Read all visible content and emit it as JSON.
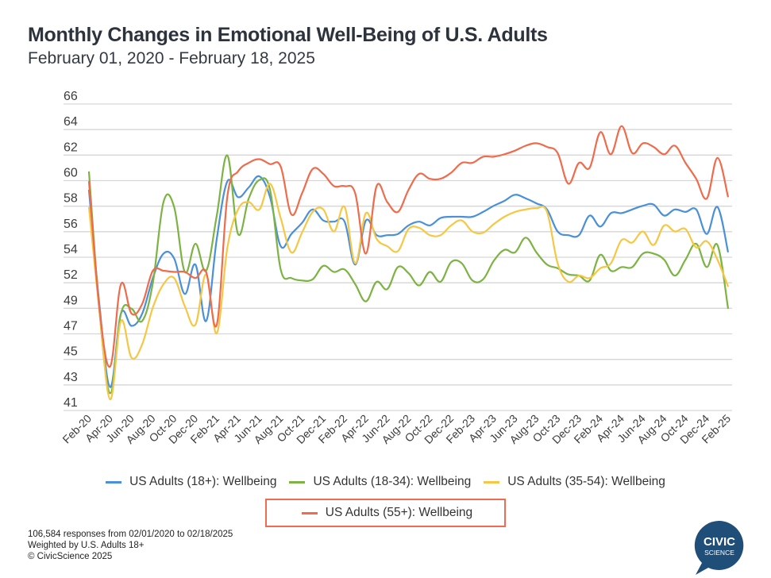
{
  "header": {
    "title": "Monthly Changes in Emotional Well-Being of U.S. Adults",
    "subtitle": "February 01, 2020 - February 18, 2025"
  },
  "footer": {
    "line1": "106,584 responses from 02/01/2020 to 02/18/2025",
    "line2": "Weighted by U.S. Adults 18+",
    "line3": "© CivicScience 2025"
  },
  "logo": {
    "line1": "CIVIC",
    "line2": "SCIENCE",
    "color": "#1f4e79"
  },
  "chart_data": {
    "type": "line",
    "title": "Monthly Changes in Emotional Well-Being of U.S. Adults",
    "subtitle": "February 01, 2020 - February 18, 2025",
    "xlabel": "",
    "ylabel": "",
    "ylim": [
      41,
      66
    ],
    "y_tick_labels": [
      "66",
      "64",
      "62",
      "60",
      "58",
      "56",
      "54",
      "52",
      "49",
      "47",
      "45",
      "43",
      "41"
    ],
    "grid": true,
    "legend_position": "bottom",
    "x_tick_labels": [
      "Feb-20",
      "Apr-20",
      "Jun-20",
      "Aug-20",
      "Oct-20",
      "Dec-20",
      "Feb-21",
      "Apr-21",
      "Jun-21",
      "Aug-21",
      "Oct-21",
      "Dec-21",
      "Feb-22",
      "Apr-22",
      "Jun-22",
      "Aug-22",
      "Oct-22",
      "Dec-22",
      "Feb-23",
      "Apr-23",
      "Jun-23",
      "Aug-23",
      "Oct-23",
      "Dec-23",
      "Feb-24",
      "Apr-24",
      "Jun-24",
      "Aug-24",
      "Oct-24",
      "Dec-24",
      "Feb-25"
    ],
    "x": [
      "Feb-20",
      "Mar-20",
      "Apr-20",
      "May-20",
      "Jun-20",
      "Jul-20",
      "Aug-20",
      "Sep-20",
      "Oct-20",
      "Nov-20",
      "Dec-20",
      "Jan-21",
      "Feb-21",
      "Mar-21",
      "Apr-21",
      "May-21",
      "Jun-21",
      "Jul-21",
      "Aug-21",
      "Sep-21",
      "Oct-21",
      "Nov-21",
      "Dec-21",
      "Jan-22",
      "Feb-22",
      "Mar-22",
      "Apr-22",
      "May-22",
      "Jun-22",
      "Jul-22",
      "Aug-22",
      "Sep-22",
      "Oct-22",
      "Nov-22",
      "Dec-22",
      "Jan-23",
      "Feb-23",
      "Mar-23",
      "Apr-23",
      "May-23",
      "Jun-23",
      "Jul-23",
      "Aug-23",
      "Sep-23",
      "Oct-23",
      "Nov-23",
      "Dec-23",
      "Jan-24",
      "Feb-24",
      "Mar-24",
      "Apr-24",
      "May-24",
      "Jun-24",
      "Jul-24",
      "Aug-24",
      "Sep-24",
      "Oct-24",
      "Nov-24",
      "Dec-24",
      "Jan-25",
      "Feb-25"
    ],
    "series": [
      {
        "name": "US Adults (18+): Wellbeing",
        "color": "#4a90d9",
        "values": [
          59.0,
          49.5,
          42.9,
          48.9,
          47.9,
          48.9,
          51.8,
          53.8,
          53.4,
          50.5,
          52.9,
          48.3,
          55.0,
          59.7,
          58.4,
          59.2,
          60.1,
          58.4,
          54.4,
          55.4,
          56.3,
          57.4,
          56.5,
          56.4,
          56.4,
          52.9,
          56.5,
          55.3,
          55.3,
          55.4,
          56.1,
          56.4,
          56.1,
          56.7,
          56.8,
          56.8,
          56.8,
          57.2,
          57.7,
          58.1,
          58.6,
          58.3,
          57.9,
          57.4,
          55.6,
          55.3,
          55.3,
          56.9,
          56.0,
          57.1,
          57.1,
          57.4,
          57.7,
          57.8,
          56.9,
          57.4,
          57.2,
          57.4,
          55.4,
          57.6,
          53.9
        ]
      },
      {
        "name": "US Adults (18-34): Wellbeing",
        "color": "#7cb342",
        "values": [
          60.5,
          49.0,
          42.4,
          48.9,
          49.3,
          48.3,
          51.4,
          58.0,
          57.6,
          52.3,
          54.6,
          52.4,
          56.9,
          61.8,
          55.4,
          58.3,
          59.8,
          59.0,
          52.5,
          51.8,
          51.6,
          51.7,
          52.8,
          52.3,
          52.5,
          51.3,
          49.9,
          51.5,
          50.9,
          52.7,
          52.2,
          51.2,
          52.3,
          51.5,
          53.1,
          53.0,
          51.6,
          51.7,
          53.2,
          54.1,
          53.9,
          55.1,
          53.9,
          52.9,
          52.6,
          52.1,
          52.0,
          51.6,
          53.7,
          52.4,
          52.7,
          52.7,
          53.8,
          53.8,
          53.3,
          52.0,
          53.3,
          54.6,
          52.7,
          54.5,
          49.3
        ]
      },
      {
        "name": "US Adults (35-54): Wellbeing",
        "color": "#f6c744",
        "values": [
          57.6,
          49.0,
          41.9,
          48.3,
          45.3,
          46.4,
          49.4,
          51.3,
          51.8,
          49.5,
          48.0,
          52.1,
          47.3,
          54.3,
          57.4,
          58.0,
          57.4,
          59.5,
          56.7,
          53.9,
          55.5,
          57.2,
          57.4,
          55.6,
          57.6,
          53.0,
          57.1,
          55.0,
          54.4,
          54.0,
          55.8,
          55.9,
          55.3,
          55.3,
          56.1,
          56.5,
          55.6,
          55.5,
          56.2,
          56.8,
          57.2,
          57.4,
          57.5,
          57.2,
          53.0,
          51.5,
          52.0,
          51.8,
          52.6,
          53.0,
          54.9,
          54.7,
          55.6,
          54.5,
          56.1,
          55.6,
          55.8,
          54.3,
          54.8,
          53.3,
          51.1
        ]
      },
      {
        "name": "US Adults (55+): Wellbeing",
        "color": "#ef6b4c",
        "values": [
          59.7,
          49.2,
          44.6,
          51.3,
          48.9,
          49.7,
          52.4,
          52.4,
          52.3,
          52.3,
          51.8,
          52.3,
          48.0,
          58.5,
          60.5,
          61.2,
          61.5,
          61.1,
          60.9,
          57.0,
          58.7,
          60.7,
          60.3,
          59.3,
          59.3,
          58.7,
          53.8,
          59.3,
          58.0,
          57.2,
          59.0,
          60.3,
          59.9,
          59.9,
          60.4,
          61.2,
          61.2,
          61.7,
          61.7,
          61.9,
          62.2,
          62.6,
          62.8,
          62.5,
          62.0,
          59.5,
          61.2,
          60.8,
          63.7,
          61.9,
          64.2,
          62.0,
          62.8,
          62.5,
          61.9,
          62.6,
          61.2,
          59.9,
          58.3,
          61.6,
          58.4
        ]
      }
    ]
  },
  "legend": {
    "items": [
      {
        "label": "US Adults (18+): Wellbeing",
        "color": "#4a90d9"
      },
      {
        "label": "US Adults (18-34): Wellbeing",
        "color": "#7cb342"
      },
      {
        "label": "US Adults (35-54): Wellbeing",
        "color": "#f6c744"
      },
      {
        "label": "US Adults (55+): Wellbeing",
        "color": "#ef6b4c"
      }
    ],
    "highlight_color": "#ee6d52"
  }
}
